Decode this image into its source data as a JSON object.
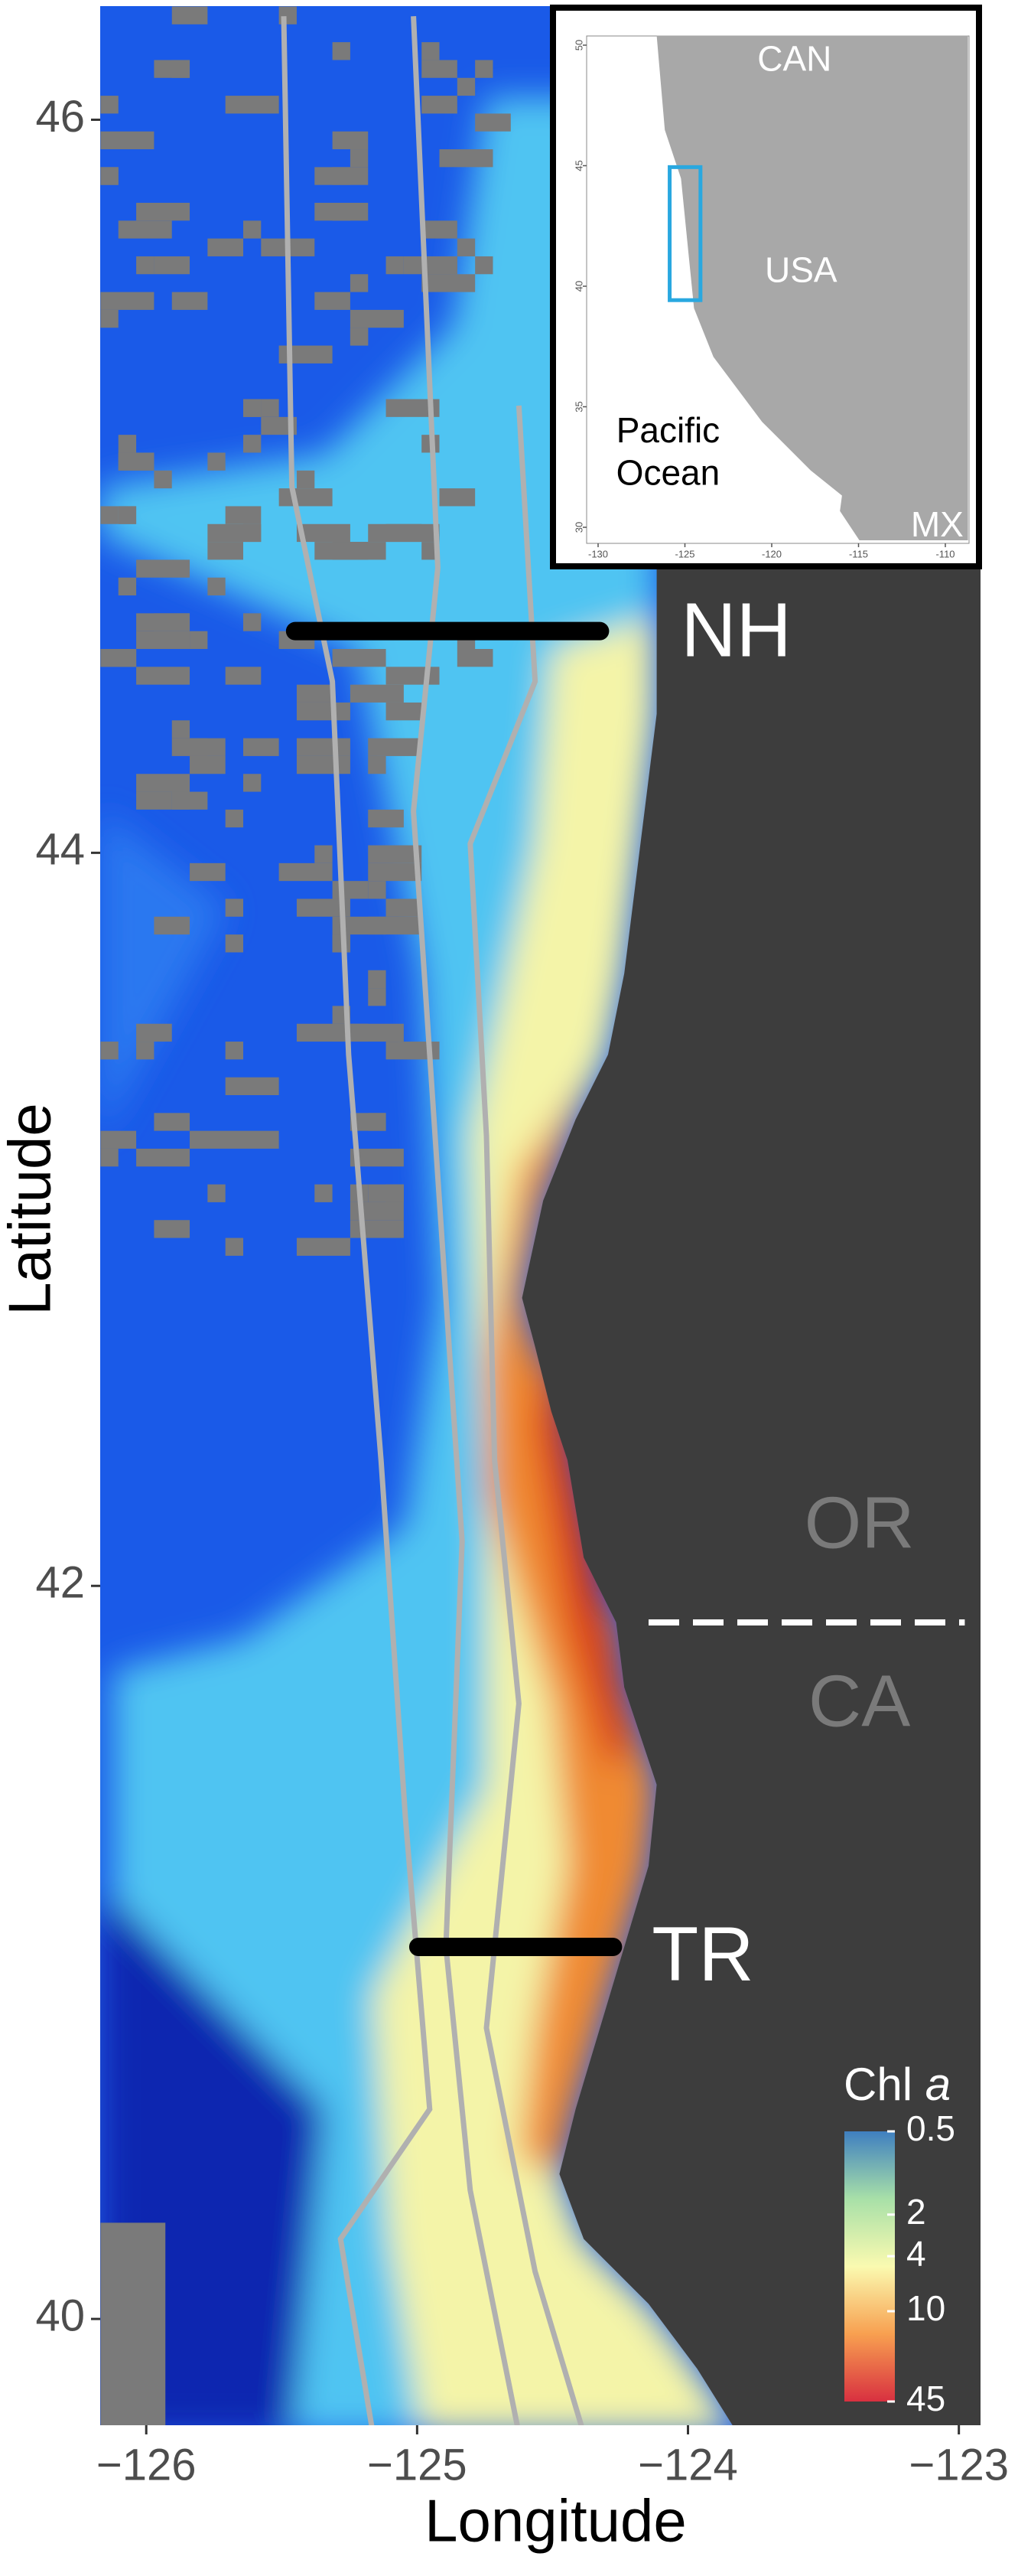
{
  "map": {
    "x_label": "Longitude",
    "y_label": "Latitude",
    "xlim": [
      -126.17,
      -122.92
    ],
    "ylim": [
      39.71,
      46.31
    ],
    "xticks": [
      {
        "value": -126,
        "label": "−126"
      },
      {
        "value": -125,
        "label": "−125"
      },
      {
        "value": -124,
        "label": "−124"
      },
      {
        "value": -123,
        "label": "−123"
      }
    ],
    "yticks": [
      46,
      44,
      42,
      40
    ],
    "transects": [
      "NH",
      "TR"
    ],
    "states": [
      "OR",
      "CA"
    ],
    "legend": {
      "title": "Chl",
      "title_italic": "a",
      "lim": [
        0.5,
        45
      ],
      "log": true,
      "ticks": [
        0.5,
        2,
        4,
        10,
        45
      ]
    },
    "inset": {
      "xlim": [
        -130,
        -110
      ],
      "ylim": [
        30,
        50
      ],
      "xticks": [
        -130,
        -125,
        -120,
        -115,
        -110
      ],
      "yticks": [
        30,
        35,
        40,
        45,
        50
      ],
      "labels": [
        "CAN",
        "USA",
        "Pacific",
        "Ocean",
        "MX"
      ]
    }
  }
}
